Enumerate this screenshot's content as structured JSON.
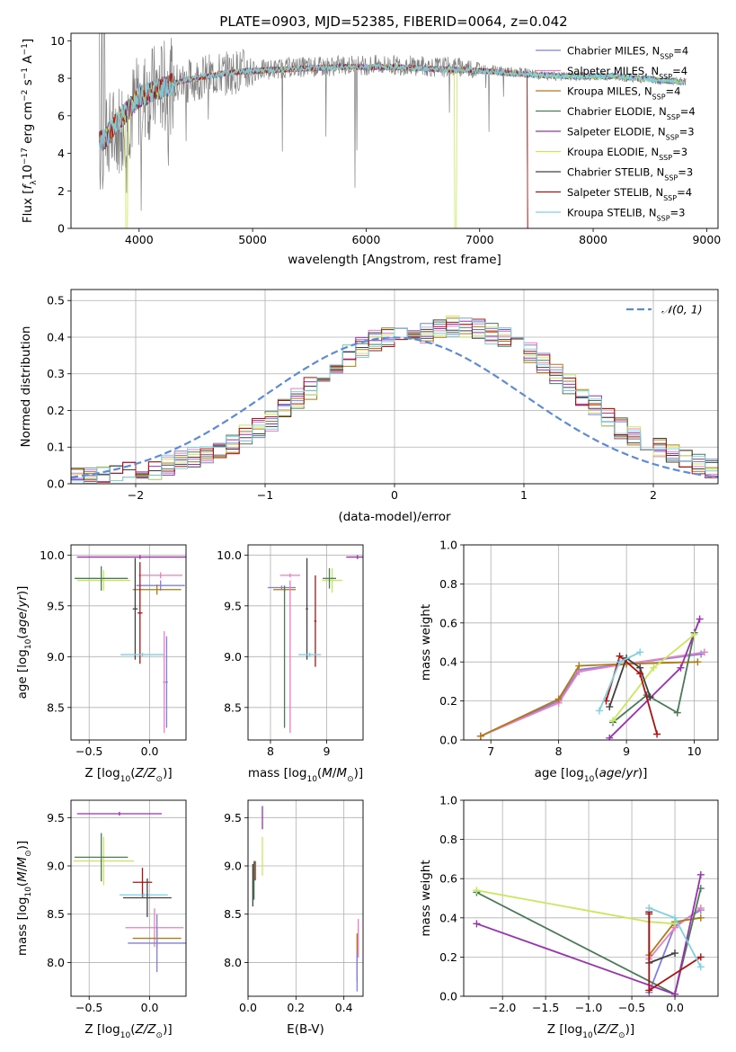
{
  "title": "PLATE=0903, MJD=52385, FIBERID=0064, z=0.042",
  "series_styles": [
    {
      "name": "Chabrier MILES",
      "nssp": "4",
      "color": "#7f7fe0"
    },
    {
      "name": "Salpeter MILES",
      "nssp": "4",
      "color": "#e87fc0"
    },
    {
      "name": "Kroupa MILES",
      "nssp": "4",
      "color": "#b07a14"
    },
    {
      "name": "Chabrier ELODIE",
      "nssp": "4",
      "color": "#4a7a5a"
    },
    {
      "name": "Salpeter ELODIE",
      "nssp": "3",
      "color": "#9b30b0"
    },
    {
      "name": "Kroupa ELODIE",
      "nssp": "3",
      "color": "#c8e85a"
    },
    {
      "name": "Chabrier STELIB",
      "nssp": "3",
      "color": "#404040"
    },
    {
      "name": "Salpeter STELIB",
      "nssp": "4",
      "color": "#b01010"
    },
    {
      "name": "Kroupa STELIB",
      "nssp": "3",
      "color": "#7fd0e0"
    }
  ],
  "chart_data": [
    {
      "type": "line",
      "id": "spectrum",
      "xlabel": "wavelength [Angstrom, rest frame]",
      "ylabel": "Flux [f_λ 10^-17 erg cm^-2 s^-1 A^-1]",
      "xlim": [
        3400,
        9100
      ],
      "ylim": [
        0,
        10.4
      ],
      "xticks": [
        4000,
        5000,
        6000,
        7000,
        8000,
        9000
      ],
      "yticks": [
        0,
        2,
        4,
        6,
        8,
        10
      ],
      "grid": false,
      "legend_position": "right",
      "data_color": "#808080",
      "data_x": [
        3650,
        3700,
        3800,
        3900,
        4000,
        4100,
        4200,
        4300,
        4400,
        4500,
        4600,
        4700,
        4800,
        4900,
        5000,
        5200,
        5400,
        5600,
        5800,
        6000,
        6200,
        6400,
        6600,
        6800,
        7000,
        7200,
        7400,
        7600,
        7800,
        8000,
        8200,
        8400,
        8600,
        8800
      ],
      "data_y": [
        4.2,
        4.6,
        5.2,
        6.0,
        6.8,
        7.2,
        7.5,
        7.6,
        7.8,
        8.0,
        8.1,
        8.2,
        8.3,
        8.4,
        8.4,
        8.5,
        8.6,
        8.6,
        8.7,
        8.7,
        8.7,
        8.7,
        8.6,
        8.6,
        8.5,
        8.4,
        8.3,
        8.1,
        8.1,
        8.1,
        8.1,
        8.0,
        7.9,
        7.8
      ],
      "model_x": [
        3650,
        3700,
        3800,
        3900,
        4000,
        4200,
        4400,
        4600,
        4800,
        5000,
        5400,
        5800,
        6200,
        6600,
        7000,
        7400,
        7800,
        8200,
        8600,
        8800
      ],
      "model_y": [
        4.6,
        4.8,
        5.6,
        6.3,
        7.0,
        7.5,
        7.9,
        8.1,
        8.3,
        8.4,
        8.5,
        8.6,
        8.6,
        8.5,
        8.4,
        8.2,
        8.1,
        8.1,
        7.9,
        7.8
      ]
    },
    {
      "type": "bar",
      "id": "residual-histogram",
      "xlabel": "(data-model)/error",
      "ylabel": "Normed distribution",
      "xlim": [
        -2.5,
        2.5
      ],
      "ylim": [
        0,
        0.53
      ],
      "xticks": [
        -2,
        -1,
        0,
        1,
        2
      ],
      "yticks": [
        0.0,
        0.1,
        0.2,
        0.3,
        0.4,
        0.5
      ],
      "grid": true,
      "legend_position": "top-right",
      "reference_curve": {
        "name": "𝒩(0, 1)",
        "mu": 0,
        "sigma": 1,
        "color": "#5b8bd9"
      },
      "bin_edges_start": -2.5,
      "bin_width": 0.1,
      "base_values": [
        0.02,
        0.02,
        0.025,
        0.03,
        0.035,
        0.04,
        0.04,
        0.05,
        0.06,
        0.07,
        0.08,
        0.095,
        0.11,
        0.13,
        0.15,
        0.17,
        0.2,
        0.23,
        0.26,
        0.29,
        0.32,
        0.35,
        0.37,
        0.39,
        0.4,
        0.4,
        0.41,
        0.41,
        0.42,
        0.43,
        0.43,
        0.42,
        0.41,
        0.4,
        0.38,
        0.36,
        0.33,
        0.3,
        0.27,
        0.24,
        0.21,
        0.18,
        0.15,
        0.13,
        0.11,
        0.095,
        0.08,
        0.065,
        0.055,
        0.045
      ]
    },
    {
      "type": "scatter",
      "id": "age-vs-Z",
      "xlabel": "Z [log10(Z/Z⊙)]",
      "ylabel": "age [log10(age/yr)]",
      "xlim": [
        -0.65,
        0.3
      ],
      "ylim": [
        8.18,
        10.1
      ],
      "xticks": [
        -0.5,
        0.0
      ],
      "yticks": [
        8.5,
        9.0,
        9.5,
        10.0
      ],
      "points": [
        {
          "s": 4,
          "x": -0.08,
          "y": 9.98,
          "xerr": 0.52,
          "yerr": 0.02
        },
        {
          "s": 5,
          "x": -0.38,
          "y": 9.75,
          "xerr": 0.22,
          "yerr": 0.1
        },
        {
          "s": 3,
          "x": -0.4,
          "y": 9.77,
          "xerr": 0.22,
          "yerr": 0.12
        },
        {
          "s": 0,
          "x": 0.09,
          "y": 9.7,
          "xerr": 0.2,
          "yerr": 0.05
        },
        {
          "s": 2,
          "x": 0.06,
          "y": 9.66,
          "xerr": 0.2,
          "yerr": 0.05
        },
        {
          "s": 1,
          "x": 0.09,
          "y": 9.8,
          "xerr": 0.18,
          "yerr": 0.03
        },
        {
          "s": 6,
          "x": -0.12,
          "y": 9.47,
          "xerr": 0.02,
          "yerr": 0.5
        },
        {
          "s": 7,
          "x": -0.08,
          "y": 9.43,
          "xerr": 0.02,
          "yerr": 0.5
        },
        {
          "s": 8,
          "x": -0.06,
          "y": 9.02,
          "xerr": 0.18,
          "yerr": 0.02
        },
        {
          "s": 1,
          "x": 0.12,
          "y": 8.75,
          "xerr": 0.01,
          "yerr": 0.5
        },
        {
          "s": 0,
          "x": 0.14,
          "y": 8.75,
          "xerr": 0.01,
          "yerr": 0.45
        }
      ]
    },
    {
      "type": "scatter",
      "id": "age-vs-mass",
      "xlabel": "mass [log10(M/M⊙)]",
      "ylabel": "",
      "xlim": [
        7.6,
        9.65
      ],
      "ylim": [
        8.18,
        10.1
      ],
      "xticks": [
        8,
        9
      ],
      "yticks": [
        8.5,
        9.0,
        9.5,
        10.0
      ],
      "points": [
        {
          "s": 4,
          "x": 9.55,
          "y": 9.98,
          "xerr": 0.2,
          "yerr": 0.02
        },
        {
          "s": 5,
          "x": 9.1,
          "y": 9.75,
          "xerr": 0.18,
          "yerr": 0.12
        },
        {
          "s": 3,
          "x": 9.05,
          "y": 9.77,
          "xerr": 0.12,
          "yerr": 0.1
        },
        {
          "s": 0,
          "x": 8.2,
          "y": 9.68,
          "xerr": 0.25,
          "yerr": 0.02
        },
        {
          "s": 2,
          "x": 8.25,
          "y": 9.66,
          "xerr": 0.2,
          "yerr": 0.02
        },
        {
          "s": 1,
          "x": 8.35,
          "y": 9.8,
          "xerr": 0.18,
          "yerr": 0.02
        },
        {
          "s": 6,
          "x": 8.65,
          "y": 9.47,
          "xerr": 0.02,
          "yerr": 0.5
        },
        {
          "s": 7,
          "x": 8.8,
          "y": 9.35,
          "xerr": 0.02,
          "yerr": 0.45
        },
        {
          "s": 8,
          "x": 8.7,
          "y": 9.02,
          "xerr": 0.2,
          "yerr": 0.02
        },
        {
          "s": 1,
          "x": 8.35,
          "y": 9.0,
          "xerr": 0.01,
          "yerr": 0.75
        },
        {
          "s": 3,
          "x": 8.25,
          "y": 9.0,
          "xerr": 0.01,
          "yerr": 0.7
        }
      ]
    },
    {
      "type": "line",
      "id": "mass-weight-vs-age",
      "xlabel": "age [log10(age/yr)]",
      "ylabel": "mass weight",
      "xlim": [
        6.6,
        10.35
      ],
      "ylim": [
        0,
        1
      ],
      "xticks": [
        7,
        8,
        9,
        10
      ],
      "yticks": [
        0.0,
        0.2,
        0.4,
        0.6,
        0.8,
        1.0
      ],
      "series": [
        {
          "s": 0,
          "x": [
            6.85,
            8.0,
            8.3,
            9.0,
            10.1
          ],
          "y": [
            0.02,
            0.2,
            0.36,
            0.39,
            0.44
          ]
        },
        {
          "s": 1,
          "x": [
            6.85,
            8.0,
            8.3,
            9.0,
            10.15
          ],
          "y": [
            0.02,
            0.19,
            0.35,
            0.39,
            0.45
          ]
        },
        {
          "s": 2,
          "x": [
            6.85,
            8.0,
            8.3,
            9.0,
            10.05
          ],
          "y": [
            0.02,
            0.21,
            0.38,
            0.39,
            0.4
          ]
        },
        {
          "s": 3,
          "x": [
            8.8,
            9.3,
            9.75,
            10.0
          ],
          "y": [
            0.09,
            0.23,
            0.14,
            0.55
          ]
        },
        {
          "s": 4,
          "x": [
            8.75,
            9.8,
            10.08
          ],
          "y": [
            0.01,
            0.37,
            0.62
          ]
        },
        {
          "s": 5,
          "x": [
            8.8,
            9.4,
            10.0
          ],
          "y": [
            0.1,
            0.37,
            0.54
          ]
        },
        {
          "s": 6,
          "x": [
            8.75,
            9.0,
            9.2,
            9.35
          ],
          "y": [
            0.17,
            0.42,
            0.37,
            0.22
          ]
        },
        {
          "s": 7,
          "x": [
            8.7,
            8.9,
            9.2,
            9.45
          ],
          "y": [
            0.2,
            0.43,
            0.34,
            0.03
          ]
        },
        {
          "s": 8,
          "x": [
            8.6,
            8.9,
            9.2
          ],
          "y": [
            0.15,
            0.4,
            0.45
          ]
        }
      ]
    },
    {
      "type": "scatter",
      "id": "mass-vs-Z",
      "xlabel": "Z [log10(Z/Z⊙)]",
      "ylabel": "mass [log10(M/M⊙)]",
      "xlim": [
        -0.65,
        0.3
      ],
      "ylim": [
        7.65,
        9.68
      ],
      "xticks": [
        -0.5,
        0.0
      ],
      "yticks": [
        8.0,
        8.5,
        9.0,
        9.5
      ],
      "points": [
        {
          "s": 4,
          "x": -0.25,
          "y": 9.54,
          "xerr": 0.35,
          "yerr": 0.02
        },
        {
          "s": 5,
          "x": -0.38,
          "y": 9.05,
          "xerr": 0.25,
          "yerr": 0.25
        },
        {
          "s": 3,
          "x": -0.4,
          "y": 9.09,
          "xerr": 0.22,
          "yerr": 0.25
        },
        {
          "s": 7,
          "x": -0.06,
          "y": 8.83,
          "xerr": 0.08,
          "yerr": 0.15
        },
        {
          "s": 8,
          "x": -0.05,
          "y": 8.7,
          "xerr": 0.2,
          "yerr": 0.02
        },
        {
          "s": 6,
          "x": -0.02,
          "y": 8.67,
          "xerr": 0.2,
          "yerr": 0.2
        },
        {
          "s": 1,
          "x": 0.04,
          "y": 8.36,
          "xerr": 0.24,
          "yerr": 0.2
        },
        {
          "s": 2,
          "x": 0.06,
          "y": 8.25,
          "xerr": 0.2,
          "yerr": 0.1
        },
        {
          "s": 0,
          "x": 0.06,
          "y": 8.2,
          "xerr": 0.24,
          "yerr": 0.3
        }
      ]
    },
    {
      "type": "scatter",
      "id": "mass-vs-EBV",
      "xlabel": "E(B-V)",
      "ylabel": "",
      "xlim": [
        0,
        0.48
      ],
      "ylim": [
        7.65,
        9.68
      ],
      "xticks": [
        0.0,
        0.2,
        0.4
      ],
      "yticks": [
        8.0,
        8.5,
        9.0,
        9.5
      ],
      "points": [
        {
          "s": 4,
          "x": 0.06,
          "y": 9.5,
          "xerr": 0.001,
          "yerr": 0.12
        },
        {
          "s": 5,
          "x": 0.06,
          "y": 9.1,
          "xerr": 0.001,
          "yerr": 0.2
        },
        {
          "s": 6,
          "x": 0.02,
          "y": 8.8,
          "xerr": 0.001,
          "yerr": 0.22
        },
        {
          "s": 3,
          "x": 0.025,
          "y": 8.85,
          "xerr": 0.001,
          "yerr": 0.2
        },
        {
          "s": 7,
          "x": 0.03,
          "y": 8.95,
          "xerr": 0.001,
          "yerr": 0.1
        },
        {
          "s": 1,
          "x": 0.46,
          "y": 8.25,
          "xerr": 0.001,
          "yerr": 0.2
        },
        {
          "s": 2,
          "x": 0.455,
          "y": 8.05,
          "xerr": 0.001,
          "yerr": 0.25
        },
        {
          "s": 0,
          "x": 0.455,
          "y": 7.9,
          "xerr": 0.001,
          "yerr": 0.2
        }
      ]
    },
    {
      "type": "line",
      "id": "mass-weight-vs-Z",
      "xlabel": "Z [log10(Z/Z⊙)]",
      "ylabel": "mass weight",
      "xlim": [
        -2.45,
        0.5
      ],
      "ylim": [
        0,
        1
      ],
      "xticks": [
        -2.0,
        -1.5,
        -1.0,
        -0.5,
        0.0
      ],
      "yticks": [
        0.0,
        0.2,
        0.4,
        0.6,
        0.8,
        1.0
      ],
      "series": [
        {
          "s": 0,
          "x": [
            -0.3,
            0.0,
            0.3
          ],
          "y": [
            0.02,
            0.36,
            0.44
          ]
        },
        {
          "s": 1,
          "x": [
            -0.3,
            0.0,
            0.3
          ],
          "y": [
            0.19,
            0.35,
            0.45
          ]
        },
        {
          "s": 2,
          "x": [
            -0.3,
            0.0,
            0.3
          ],
          "y": [
            0.21,
            0.38,
            0.4
          ]
        },
        {
          "s": 3,
          "x": [
            -2.3,
            0.0,
            0.3
          ],
          "y": [
            0.53,
            0.01,
            0.55
          ]
        },
        {
          "s": 4,
          "x": [
            -2.3,
            0.0,
            0.3
          ],
          "y": [
            0.37,
            0.01,
            0.62
          ]
        },
        {
          "s": 5,
          "x": [
            -2.3,
            -0.3,
            0.0
          ],
          "y": [
            0.54,
            0.38,
            0.37
          ]
        },
        {
          "s": 6,
          "x": [
            -0.3,
            -0.3,
            0.0
          ],
          "y": [
            0.42,
            0.17,
            0.22
          ]
        },
        {
          "s": 7,
          "x": [
            -0.3,
            -0.3,
            0.3
          ],
          "y": [
            0.43,
            0.03,
            0.2
          ]
        },
        {
          "s": 8,
          "x": [
            -0.3,
            0.0,
            0.3
          ],
          "y": [
            0.45,
            0.4,
            0.15
          ]
        }
      ]
    }
  ]
}
